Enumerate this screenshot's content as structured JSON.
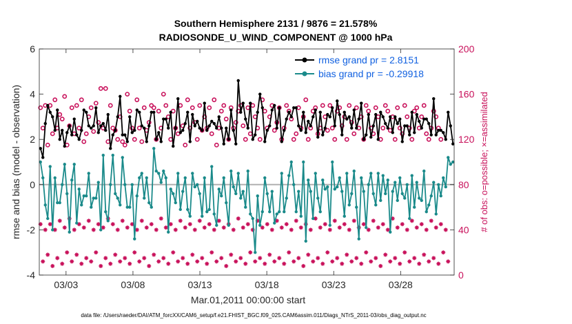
{
  "chart_data": {
    "type": "line",
    "title_line1": "Southern Hemisphere 2131 / 9876 = 21.578%",
    "title_line2": "RADIOSONDE_U_WIND_COMPONENT @ 1000 hPa",
    "ylabel": "rmse and bias (model - observation)",
    "ylabel_right": "# of obs: o=possible; ×=assimilated",
    "xlabel": "Mar.01,2011 00:00:00 start",
    "footer": "data file: /Users/raeder/DAI/ATM_forcXX/CAM6_setup/f.e21.FHIST_BGC.f09_025.CAM6assim.011/Diags_NTrS_2011-03/obs_diag_output.nc",
    "ylim": [
      -4,
      6
    ],
    "ylim_right": [
      0,
      200
    ],
    "xlim_days": [
      0,
      31
    ],
    "y_ticks": [
      "-4",
      "-2",
      "0",
      "2",
      "4",
      "6"
    ],
    "y_ticks_right": [
      "0",
      "40",
      "80",
      "120",
      "160",
      "200"
    ],
    "x_ticks": [
      {
        "day": 2,
        "label": "03/03"
      },
      {
        "day": 7,
        "label": "03/08"
      },
      {
        "day": 12,
        "label": "03/13"
      },
      {
        "day": 17,
        "label": "03/18"
      },
      {
        "day": 22,
        "label": "03/23"
      },
      {
        "day": 27,
        "label": "03/28"
      }
    ],
    "series": [
      {
        "name": "rmse grand pr = 2.8151",
        "color": "#000000",
        "values": [
          1.6,
          1.2,
          2.7,
          3.5,
          3.2,
          3.0,
          2.4,
          3.3,
          2.0,
          2.4,
          1.7,
          2.3,
          2.6,
          2.2,
          2.9,
          2.2,
          2.0,
          2.4,
          3.3,
          3.2,
          2.6,
          2.5,
          2.6,
          3.4,
          2.3,
          2.6,
          2.7,
          2.4,
          3.1,
          1.6,
          2.2,
          2.4,
          3.0,
          3.9,
          2.2,
          2.2,
          1.9,
          3.0,
          2.3,
          2.4,
          3.3,
          3.2,
          2.6,
          2.5,
          1.9,
          2.6,
          3.2,
          3.2,
          2.0,
          2.3,
          1.9,
          2.9,
          2.9,
          2.5,
          3.2,
          1.7,
          2.5,
          3.8,
          2.3,
          2.4,
          2.7,
          3.2,
          1.9,
          3.1,
          2.6,
          2.8,
          2.5,
          2.4,
          3.6,
          2.4,
          2.6,
          2.8,
          2.7,
          2.5,
          3.0,
          2.5,
          1.8,
          2.5,
          2.0,
          3.3,
          2.4,
          1.8,
          4.6,
          3.2,
          3.6,
          2.9,
          2.5,
          3.6,
          2.0,
          2.2,
          3.2,
          4.0,
          3.4,
          1.9,
          2.4,
          2.6,
          3.3,
          3.5,
          2.5,
          3.4,
          1.9,
          2.4,
          2.9,
          3.2,
          3.0,
          3.4,
          3.4,
          2.6,
          2.4,
          3.2,
          2.3,
          2.8,
          2.6,
          3.0,
          3.3,
          2.1,
          3.2,
          2.2,
          2.5,
          3.1,
          3.0,
          3.4,
          2.6,
          3.7,
          3.1,
          2.2,
          3.2,
          2.9,
          3.0,
          2.5,
          3.3,
          2.5,
          2.9,
          3.6,
          2.0,
          2.2,
          3.1,
          2.1,
          2.6,
          3.1,
          2.0,
          3.2,
          3.0,
          2.7,
          2.5,
          3.0,
          2.3,
          3.0,
          2.7,
          2.9,
          1.9,
          2.6,
          2.6,
          2.2,
          3.2,
          2.3,
          3.1,
          2.8,
          2.5,
          2.9,
          2.9,
          2.7,
          2.2,
          3.8,
          2.2,
          2.4,
          2.4,
          2.3,
          2.0,
          3.2,
          2.6,
          1.8
        ]
      },
      {
        "name": "bias grand pr = -0.29918",
        "color": "#1a8a8a",
        "values": [
          1.0,
          0.3,
          -0.9,
          -1.5,
          0.8,
          -2.0,
          0.3,
          -0.8,
          -0.8,
          0.0,
          0.9,
          -0.4,
          -2.1,
          0.2,
          0.9,
          -1.7,
          -0.2,
          -0.9,
          -0.5,
          -0.5,
          0.5,
          -1.0,
          -0.6,
          -0.6,
          0.1,
          -2.0,
          1.3,
          -1.2,
          -1.6,
          0.0,
          1.3,
          -0.4,
          -0.6,
          -0.9,
          1.2,
          0.0,
          -1.0,
          -1.0,
          0.0,
          -2.4,
          -0.5,
          0.3,
          0.5,
          -0.6,
          0.3,
          -0.8,
          -1.0,
          1.6,
          0.6,
          0.5,
          0.1,
          0.6,
          0.3,
          -2.1,
          -0.2,
          -0.4,
          -0.8,
          0.5,
          -1.1,
          -0.3,
          0.3,
          -1.1,
          -1.4,
          0.5,
          -0.1,
          0.0,
          -0.4,
          -1.4,
          0.3,
          -1.2,
          -1.1,
          0.8,
          -1.3,
          -1.8,
          -0.2,
          -0.5,
          0.3,
          -0.8,
          -1.8,
          0.6,
          -0.1,
          -0.4,
          0.5,
          -0.6,
          -0.3,
          -1.0,
          0.6,
          -1.3,
          -1.5,
          -3.0,
          -0.5,
          -1.8,
          -1.2,
          0.3,
          -0.4,
          -1.2,
          -0.3,
          -1.7,
          -1.3,
          -1.2,
          0.5,
          -1.2,
          -0.6,
          0.4,
          1.0,
          0.0,
          -1.2,
          -0.3,
          -1.4,
          1.0,
          -2.5,
          0.2,
          -0.3,
          -1.5,
          0.5,
          -0.6,
          -1.2,
          0.2,
          -0.2,
          -0.1,
          -1.8,
          1.0,
          -0.2,
          -0.1,
          0.3,
          -0.3,
          -1.4,
          0.5,
          -0.9,
          -0.4,
          0.6,
          -1.0,
          -2.4,
          0.3,
          -0.3,
          -1.9,
          0.0,
          0.5,
          -0.4,
          -0.9,
          0.5,
          -0.7,
          0.4,
          -0.4,
          0.2,
          -2.1,
          -0.3,
          0.1,
          -0.7,
          0.3,
          -0.4,
          -0.6,
          0.0,
          -1.5,
          0.4,
          -1.0,
          0.1,
          -0.6,
          -0.7,
          0.6,
          -1.2,
          -0.9,
          -0.5,
          0.1,
          -1.3,
          0.0,
          -0.5,
          0.3,
          -0.1,
          1.2,
          0.9,
          1.0
        ]
      }
    ],
    "obs_possible": [
      148,
      130,
      150,
      115,
      150,
      125,
      155,
      130,
      142,
      138,
      158,
      115,
      132,
      148,
      125,
      150,
      130,
      155,
      118,
      125,
      140,
      148,
      127,
      152,
      135,
      165,
      130,
      165,
      118,
      150,
      130,
      128,
      120,
      140,
      118,
      115,
      160,
      145,
      130,
      120,
      155,
      130,
      118,
      148,
      128,
      135,
      150,
      148,
      120,
      145,
      130,
      160,
      150,
      140,
      120,
      145,
      130,
      125,
      150,
      132,
      115,
      155,
      130,
      148,
      135,
      120,
      150,
      128,
      140,
      130,
      148,
      125,
      155,
      115,
      130,
      145,
      150,
      138,
      120,
      148,
      130,
      135,
      145,
      150,
      132,
      120,
      148,
      125,
      150,
      140,
      130,
      120,
      155,
      145,
      130,
      140,
      150,
      128,
      135,
      148,
      120,
      130,
      150,
      145,
      138,
      120,
      125,
      148,
      130,
      140,
      155,
      120,
      130,
      145,
      148,
      125,
      130,
      150,
      140,
      128,
      150,
      130,
      120,
      145,
      148,
      132,
      140,
      120,
      150,
      135,
      125,
      148,
      130,
      140,
      120,
      150,
      145,
      130,
      125,
      148,
      140,
      120,
      130,
      150,
      145,
      128,
      140,
      120,
      148,
      130,
      125,
      150,
      140,
      130,
      120,
      145,
      148,
      130,
      140,
      150,
      125,
      120,
      130,
      145,
      140,
      130,
      120
    ],
    "obs_assimilated": [
      45,
      12,
      40,
      18,
      45,
      8,
      40,
      15,
      48,
      10,
      42,
      20,
      50,
      12,
      40,
      18,
      45,
      10,
      42,
      15,
      48,
      12,
      40,
      20,
      45,
      8,
      42,
      15,
      50,
      10,
      45,
      18,
      40,
      12,
      48,
      15,
      42,
      10,
      45,
      20,
      40,
      12,
      48,
      15,
      42,
      8,
      45,
      18,
      40,
      12,
      50,
      15,
      42,
      10,
      45,
      20,
      40,
      12,
      48,
      15,
      42,
      10,
      45,
      18,
      40,
      12,
      48,
      15,
      42,
      10,
      45,
      20,
      40,
      12,
      48,
      15,
      42,
      8,
      45,
      18,
      40,
      12,
      50,
      15,
      42,
      10,
      45,
      20,
      40,
      12,
      48,
      15,
      42,
      10,
      45,
      18,
      40,
      12,
      48,
      15,
      42,
      10,
      45,
      20,
      40,
      12,
      48,
      15,
      42,
      8,
      45,
      18,
      40,
      12,
      50,
      15,
      42,
      10,
      45,
      20,
      40,
      12,
      48,
      15,
      42,
      10,
      45,
      18,
      40,
      12,
      48,
      15,
      42,
      10,
      45,
      20,
      40,
      12,
      48,
      15,
      42,
      8,
      45,
      18,
      40,
      12,
      50,
      15,
      42,
      10,
      45,
      20,
      40,
      12,
      48,
      15,
      42,
      10,
      45,
      18,
      40,
      12,
      48,
      15,
      42,
      10,
      45,
      20,
      40,
      12
    ]
  },
  "colors": {
    "rmse": "#000000",
    "bias": "#1a8a8a",
    "obs": "#c8105a",
    "zero_line": "#b0b0b0"
  }
}
